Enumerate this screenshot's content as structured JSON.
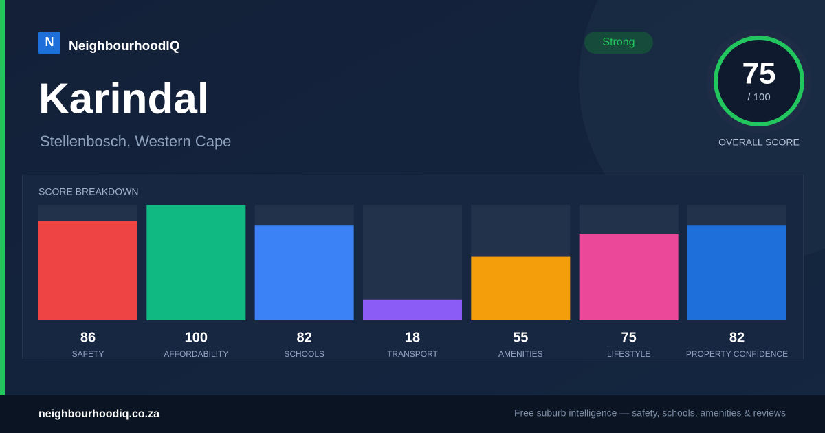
{
  "brand": {
    "logo_letter": "N",
    "name": "NeighbourhoodIQ"
  },
  "suburb": {
    "name": "Karindal",
    "location": "Stellenbosch, Western Cape"
  },
  "score": {
    "badge": "Strong",
    "value": 75,
    "max_label": "/ 100",
    "caption": "OVERALL SCORE"
  },
  "chart_data": {
    "type": "bar",
    "title": "SCORE BREAKDOWN",
    "categories": [
      "SAFETY",
      "AFFORDABILITY",
      "SCHOOLS",
      "TRANSPORT",
      "AMENITIES",
      "LIFESTYLE",
      "PROPERTY CONFIDENCE"
    ],
    "values": [
      86,
      100,
      82,
      18,
      55,
      75,
      82
    ],
    "colors": [
      "#ef4444",
      "#10b981",
      "#3b82f6",
      "#8b5cf6",
      "#f59e0b",
      "#ec4899",
      "#1e6fd9"
    ],
    "ylim": [
      0,
      100
    ]
  },
  "footer": {
    "site": "neighbourhoodiq.co.za",
    "tagline": "Free suburb intelligence — safety, schools, amenities & reviews"
  }
}
